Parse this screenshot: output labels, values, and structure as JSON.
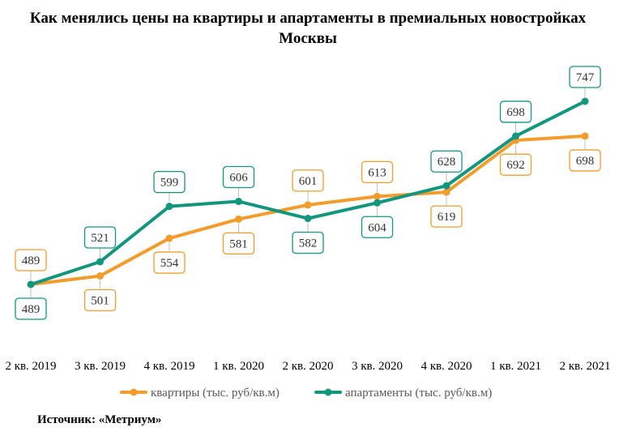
{
  "chart_data": {
    "type": "line",
    "title": "Как менялись цены на квартиры и апартаменты  в премиальных новостройках  Москвы",
    "categories": [
      "2 кв. 2019",
      "3 кв. 2019",
      "4 кв. 2019",
      "1 кв. 2020",
      "2 кв. 2020",
      "3 кв. 2020",
      "4 кв. 2020",
      "1 кв. 2021",
      "2 кв. 2021"
    ],
    "series": [
      {
        "name": "квартиры (тыс. руб/кв.м)",
        "color": "#f39c2b",
        "values": [
          489,
          501,
          554,
          581,
          601,
          613,
          619,
          692,
          698
        ]
      },
      {
        "name": "апартаменты (тыс. руб/кв.м)",
        "color": "#12967e",
        "values": [
          489,
          521,
          599,
          606,
          582,
          604,
          628,
          698,
          747
        ]
      }
    ],
    "ylim": [
      420,
      780
    ],
    "grid": false,
    "legend_position": "bottom"
  },
  "source": "Источник: «Метриум»"
}
